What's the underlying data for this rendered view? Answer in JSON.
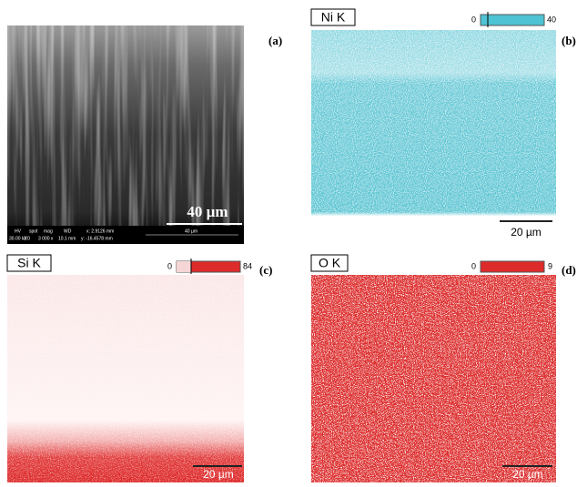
{
  "panels": [
    {
      "label": "(a)",
      "scale_bar": "40 µm",
      "info": {
        "headers": [
          "HV",
          "spot",
          "mag",
          "WD",
          "x: 2.9126 mm"
        ],
        "values": [
          "30.00 kV",
          "3.0",
          "3 000 x",
          "10.1 mm",
          "y: -16.4578 mm"
        ],
        "scale": "40 µm"
      }
    },
    {
      "label": "(b)",
      "element": "Ni K",
      "colorbar": {
        "min": 0,
        "max": 40
      },
      "scale_bar": "20 µm"
    },
    {
      "label": "(c)",
      "element": "Si K",
      "colorbar": {
        "min": 0,
        "max": 84
      },
      "scale_bar": "20 µm"
    },
    {
      "label": "(d)",
      "element": "O K",
      "colorbar": {
        "min": 0,
        "max": 9
      },
      "scale_bar": "20 µm"
    }
  ]
}
